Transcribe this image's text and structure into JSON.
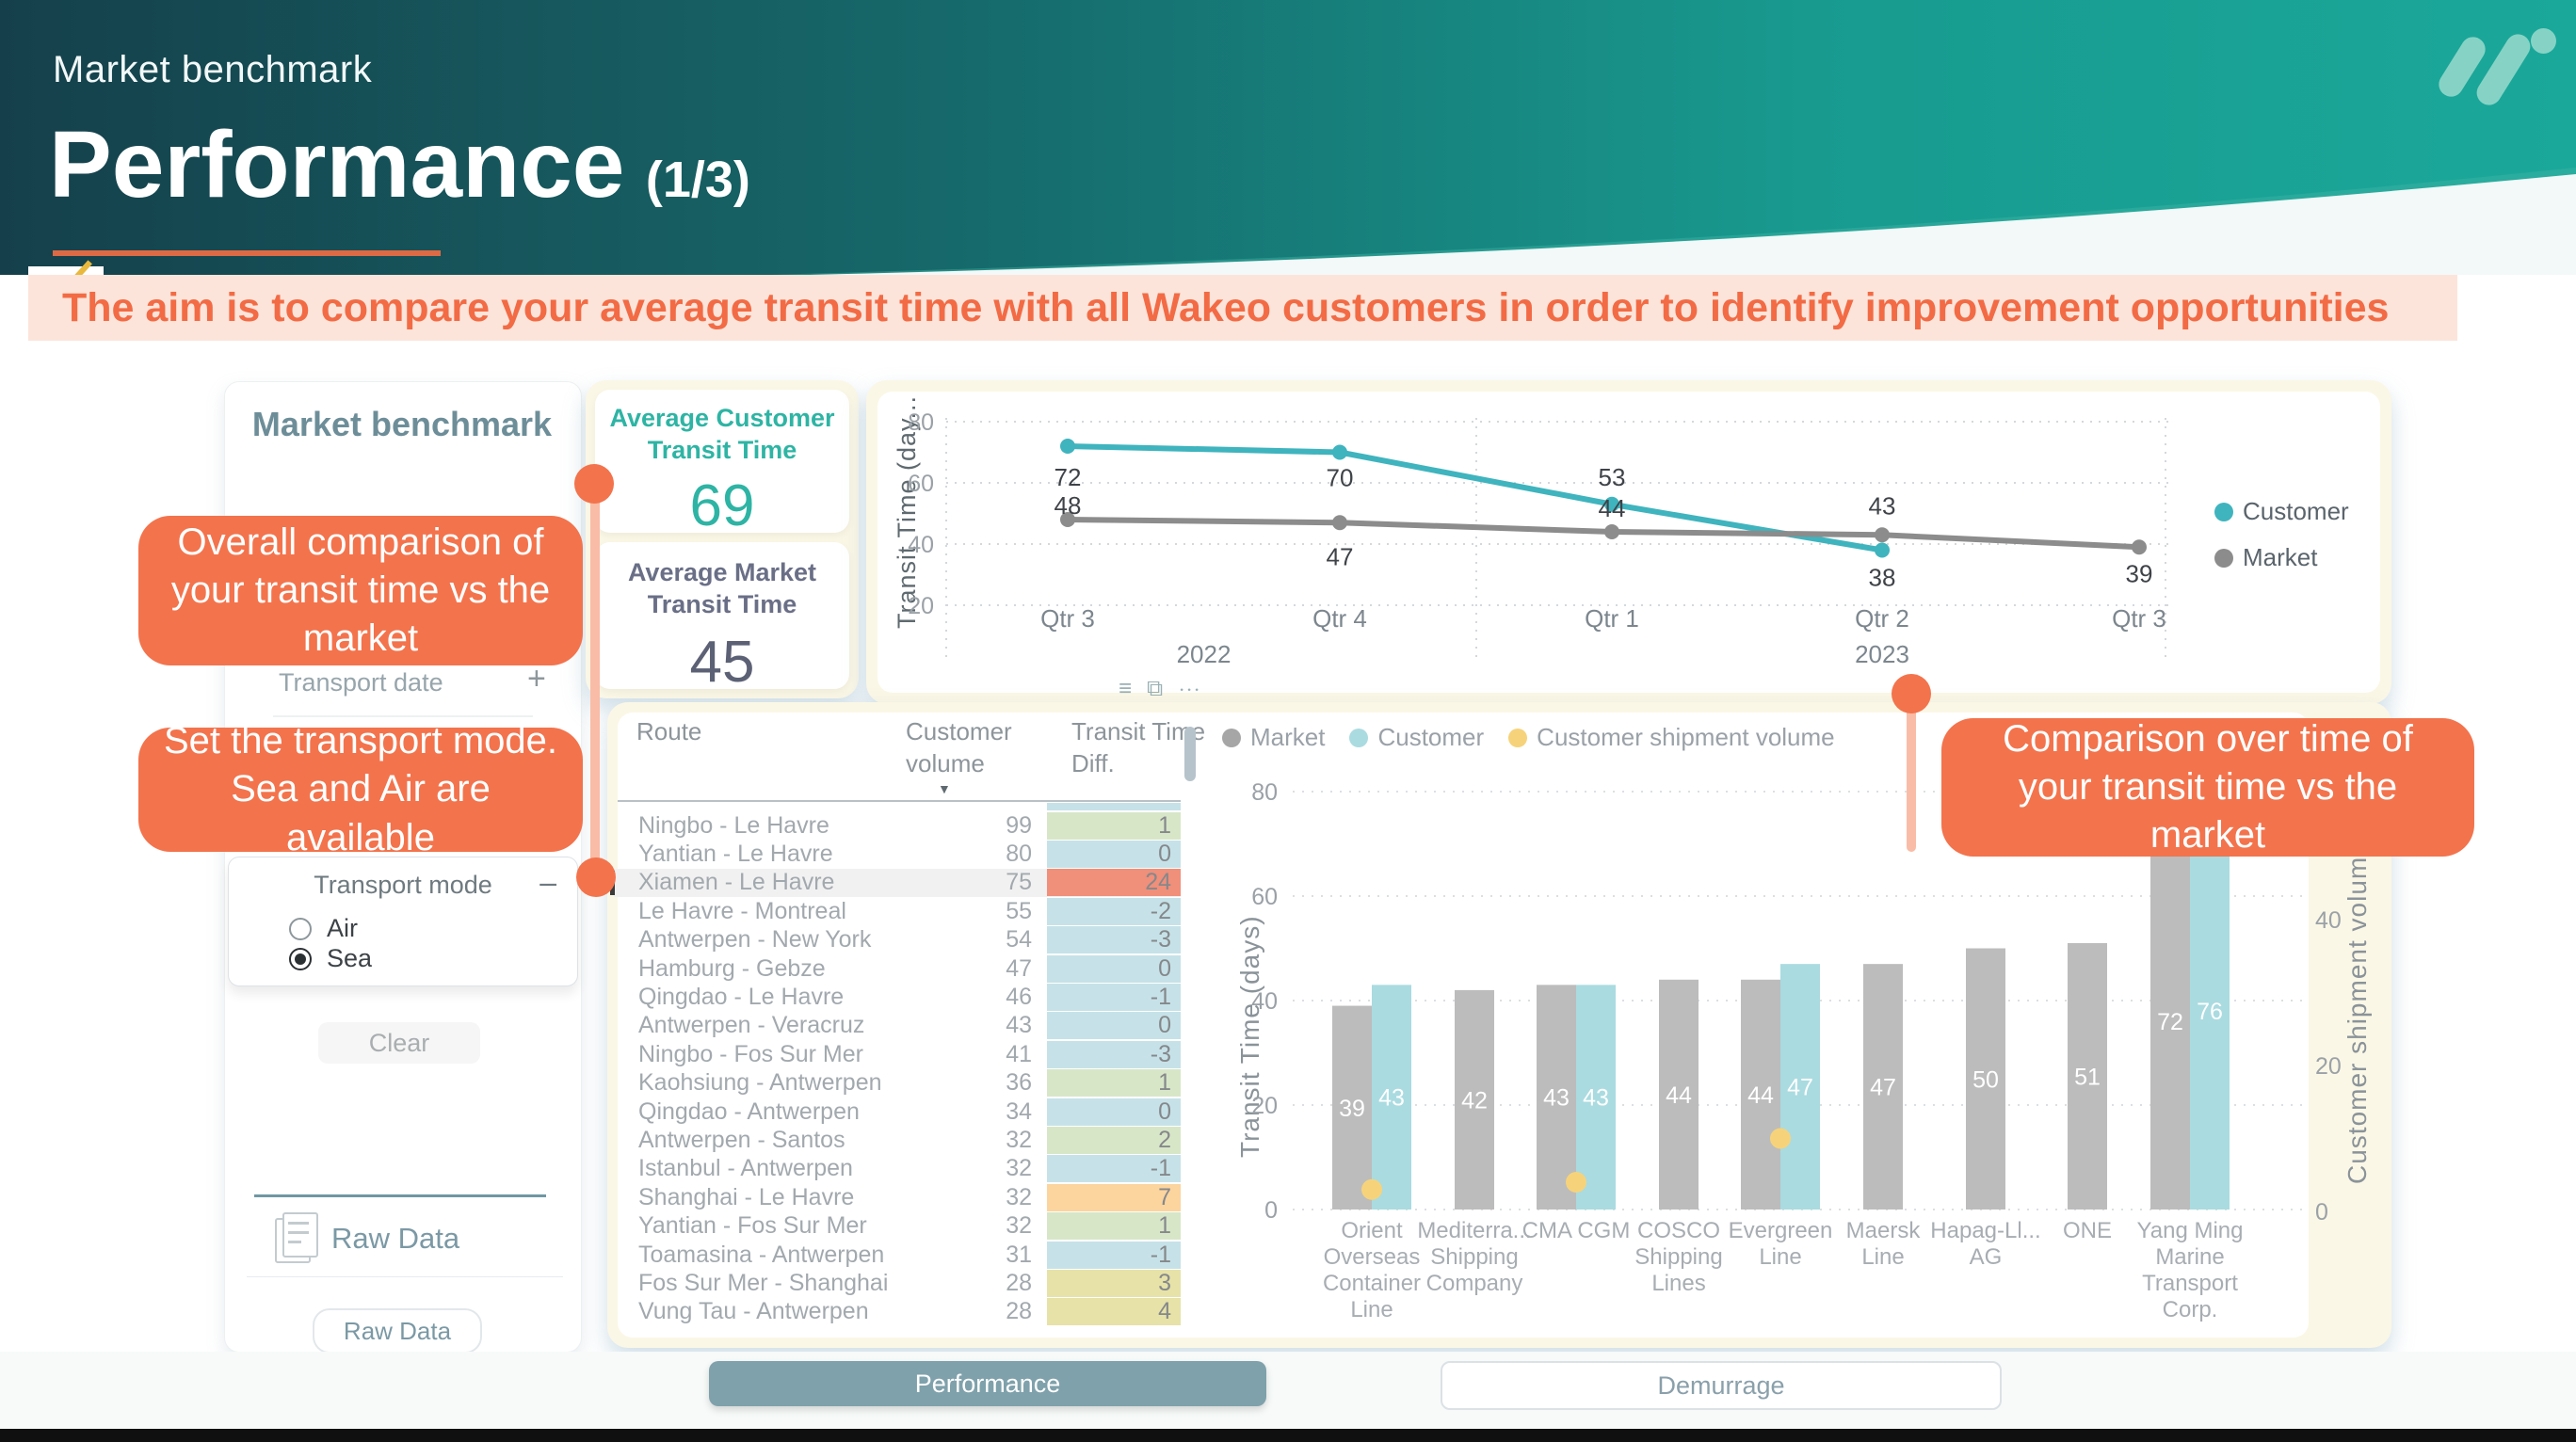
{
  "slide": {
    "kicker": "Market benchmark",
    "title": "Performance",
    "title_suffix": "(1/3)",
    "banner": "The aim is to compare your average transit time with all Wakeo customers in order to identify improvement opportunities",
    "accent_color": "#f3734c",
    "header_teal": "#1aa89a"
  },
  "callouts": {
    "kpi": "Overall comparison of your transit time vs the market",
    "transport": "Set the transport mode. Sea and Air are available",
    "timeline": "Comparison over time of your transit time vs the market"
  },
  "filter_panel": {
    "title": "Market benchmark",
    "transport_date_label": "Transport date",
    "expand_icon": "+",
    "transport_mode_title": "Transport mode",
    "collapse_icon": "–",
    "options": [
      {
        "label": "Air",
        "selected": false
      },
      {
        "label": "Sea",
        "selected": true
      }
    ],
    "clear_button": "Clear",
    "raw_data_link": "Raw Data",
    "raw_data_button": "Raw Data"
  },
  "kpis": [
    {
      "label": "Average Customer Transit Time",
      "value": "69",
      "color": "#2eb4a4"
    },
    {
      "label": "Average Market Transit Time",
      "value": "45",
      "color": "#5c6175"
    }
  ],
  "route_table": {
    "columns": {
      "route": "Route",
      "volume_line1": "Customer",
      "volume_line2": "volume",
      "diff_line1": "Transit Time",
      "diff_line2": "Diff."
    },
    "sort_icon": "▼",
    "tone_colors": {
      "green": "#d8e6c8",
      "blue": "#c6e2e8",
      "red": "#f08f7a",
      "orange": "#fcd49e",
      "khaki": "#e7e2a8"
    },
    "rows": [
      {
        "route": "Ningbo - Le Havre",
        "volume": 99,
        "diff": 1,
        "tone": "green",
        "selected": false
      },
      {
        "route": "Yantian - Le Havre",
        "volume": 80,
        "diff": 0,
        "tone": "blue",
        "selected": false
      },
      {
        "route": "Xiamen - Le Havre",
        "volume": 75,
        "diff": 24,
        "tone": "red",
        "selected": true
      },
      {
        "route": "Le Havre - Montreal",
        "volume": 55,
        "diff": -2,
        "tone": "blue",
        "selected": false
      },
      {
        "route": "Antwerpen - New York",
        "volume": 54,
        "diff": -3,
        "tone": "blue",
        "selected": false
      },
      {
        "route": "Hamburg - Gebze",
        "volume": 47,
        "diff": 0,
        "tone": "blue",
        "selected": false
      },
      {
        "route": "Qingdao - Le Havre",
        "volume": 46,
        "diff": -1,
        "tone": "blue",
        "selected": false
      },
      {
        "route": "Antwerpen - Veracruz",
        "volume": 43,
        "diff": 0,
        "tone": "blue",
        "selected": false
      },
      {
        "route": "Ningbo - Fos Sur Mer",
        "volume": 41,
        "diff": -3,
        "tone": "blue",
        "selected": false
      },
      {
        "route": "Kaohsiung - Antwerpen",
        "volume": 36,
        "diff": 1,
        "tone": "green",
        "selected": false
      },
      {
        "route": "Qingdao - Antwerpen",
        "volume": 34,
        "diff": 0,
        "tone": "blue",
        "selected": false
      },
      {
        "route": "Antwerpen - Santos",
        "volume": 32,
        "diff": 2,
        "tone": "green",
        "selected": false
      },
      {
        "route": "Istanbul - Antwerpen",
        "volume": 32,
        "diff": -1,
        "tone": "blue",
        "selected": false
      },
      {
        "route": "Shanghai - Le Havre",
        "volume": 32,
        "diff": 7,
        "tone": "orange",
        "selected": false
      },
      {
        "route": "Yantian - Fos Sur Mer",
        "volume": 32,
        "diff": 1,
        "tone": "green",
        "selected": false
      },
      {
        "route": "Toamasina - Antwerpen",
        "volume": 31,
        "diff": -1,
        "tone": "blue",
        "selected": false
      },
      {
        "route": "Fos Sur Mer - Shanghai",
        "volume": 28,
        "diff": 3,
        "tone": "khaki",
        "selected": false
      },
      {
        "route": "Vung Tau - Antwerpen",
        "volume": 28,
        "diff": 4,
        "tone": "khaki",
        "selected": false
      }
    ]
  },
  "tabs": {
    "performance": "Performance",
    "demurrage": "Demurrage"
  },
  "chart_data": [
    {
      "type": "line",
      "title": "",
      "ylabel": "Transit Time (day...",
      "ylim": [
        20,
        80
      ],
      "yticks": [
        20,
        40,
        60,
        80
      ],
      "x": [
        "Qtr 3",
        "Qtr 4",
        "Qtr 1",
        "Qtr 2",
        "Qtr 3"
      ],
      "year_groups": [
        {
          "label": "2022",
          "center_index": 0.5
        },
        {
          "label": "2023",
          "center_index": 3
        }
      ],
      "grid": "dotted",
      "legend_position": "right",
      "series": [
        {
          "name": "Customer",
          "color": "#3fb4be",
          "values": [
            72,
            70,
            53,
            38,
            null
          ]
        },
        {
          "name": "Market",
          "color": "#8c8c8c",
          "values": [
            48,
            47,
            44,
            43,
            39
          ]
        }
      ]
    },
    {
      "type": "bar",
      "ylabel": "Transit Time (days)",
      "y2label": "Customer shipment volume",
      "ylim": [
        0,
        80
      ],
      "yticks": [
        0,
        20,
        40,
        60,
        80
      ],
      "y2ticks": [
        0,
        20,
        40
      ],
      "grid": "dotted",
      "categories": [
        "Orient Overseas Container Line",
        "Mediterra... Shipping Company",
        "CMA CGM",
        "COSCO Shipping Lines",
        "Evergreen Line",
        "Maersk Line",
        "Hapag-Ll... AG",
        "ONE",
        "Yang Ming Marine Transport Corp."
      ],
      "label_lines": [
        [
          "Orient",
          "Overseas",
          "Container",
          "Line"
        ],
        [
          "Mediterra...",
          "Shipping",
          "Company"
        ],
        [
          "CMA CGM"
        ],
        [
          "COSCO",
          "Shipping",
          "Lines"
        ],
        [
          "Evergreen",
          "Line"
        ],
        [
          "Maersk",
          "Line"
        ],
        [
          "Hapag-Ll...",
          "AG"
        ],
        [
          "ONE"
        ],
        [
          "Yang Ming",
          "Marine",
          "Transport",
          "Corp."
        ]
      ],
      "series": [
        {
          "name": "Market",
          "color": "#bcbcbc",
          "values": [
            39,
            42,
            43,
            44,
            44,
            47,
            50,
            51,
            72
          ]
        },
        {
          "name": "Customer",
          "color": "#aadbe0",
          "values": [
            43,
            null,
            43,
            null,
            47,
            null,
            null,
            null,
            76
          ]
        },
        {
          "name": "Customer shipment volume",
          "color": "#f6d37a",
          "type": "scatter",
          "axis": "right",
          "values": [
            3,
            null,
            4,
            null,
            10,
            null,
            null,
            null,
            null
          ]
        }
      ]
    }
  ],
  "chart_toolbar": {
    "filter_icon": "≡",
    "focus_icon": "⧉",
    "more_icon": "⋯"
  }
}
